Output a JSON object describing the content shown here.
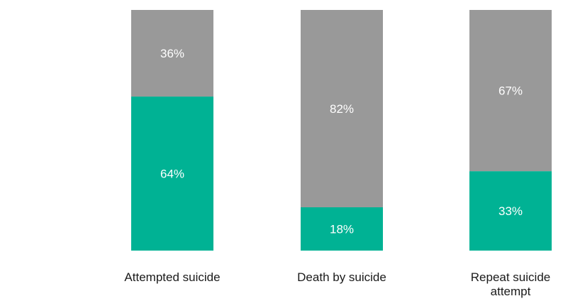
{
  "chart_data": {
    "type": "bar",
    "stacked": true,
    "percent": true,
    "categories": [
      "Attempted suicide",
      "Death by suicide",
      "Repeat suicide attempt"
    ],
    "category_lines": [
      [
        "Attempted suicide"
      ],
      [
        "Death by suicide"
      ],
      [
        "Repeat suicide",
        "attempt"
      ]
    ],
    "series": [
      {
        "values": [
          64,
          18,
          33
        ],
        "labels": [
          "64%",
          "18%",
          "33%"
        ],
        "color": "#00b294"
      },
      {
        "values": [
          36,
          82,
          67
        ],
        "labels": [
          "36%",
          "82%",
          "67%"
        ],
        "color": "#999999"
      }
    ],
    "ylim": [
      0,
      100
    ],
    "grid": false,
    "legend": "none"
  }
}
